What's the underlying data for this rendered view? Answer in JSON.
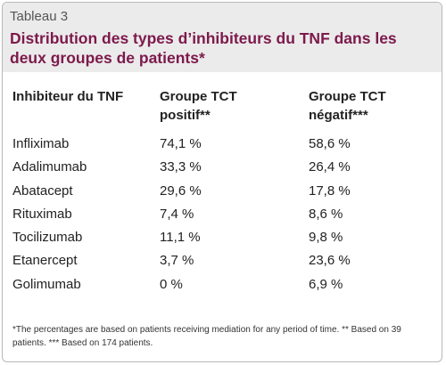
{
  "table_label": "Tableau 3",
  "title": "Distribution des types d’inhibiteurs du TNF dans les deux groupes de patients*",
  "columns": [
    "Inhibiteur du TNF",
    "Groupe TCT positif**",
    "Groupe TCT négatif***"
  ],
  "rows": [
    {
      "inhibitor": "Infliximab",
      "positive": "74,1 %",
      "negative": "58,6 %"
    },
    {
      "inhibitor": "Adalimumab",
      "positive": "33,3 %",
      "negative": "26,4 %"
    },
    {
      "inhibitor": "Abatacept",
      "positive": "29,6 %",
      "negative": "17,8 %"
    },
    {
      "inhibitor": "Rituximab",
      "positive": "7,4 %",
      "negative": "8,6 %"
    },
    {
      "inhibitor": "Tocilizumab",
      "positive": "11,1 %",
      "negative": "9,8 %"
    },
    {
      "inhibitor": "Etanercept",
      "positive": "3,7 %",
      "negative": "23,6 %"
    },
    {
      "inhibitor": "Golimumab",
      "positive": "0 %",
      "negative": "6,9 %"
    }
  ],
  "footnote": "*The percentages are based on patients receiving mediation for any period of time. ** Based on 39 patients. *** Based on 174 patients.",
  "colors": {
    "title": "#7d1a4c",
    "header_background": "#ebebeb",
    "border": "#b9b9b9"
  }
}
